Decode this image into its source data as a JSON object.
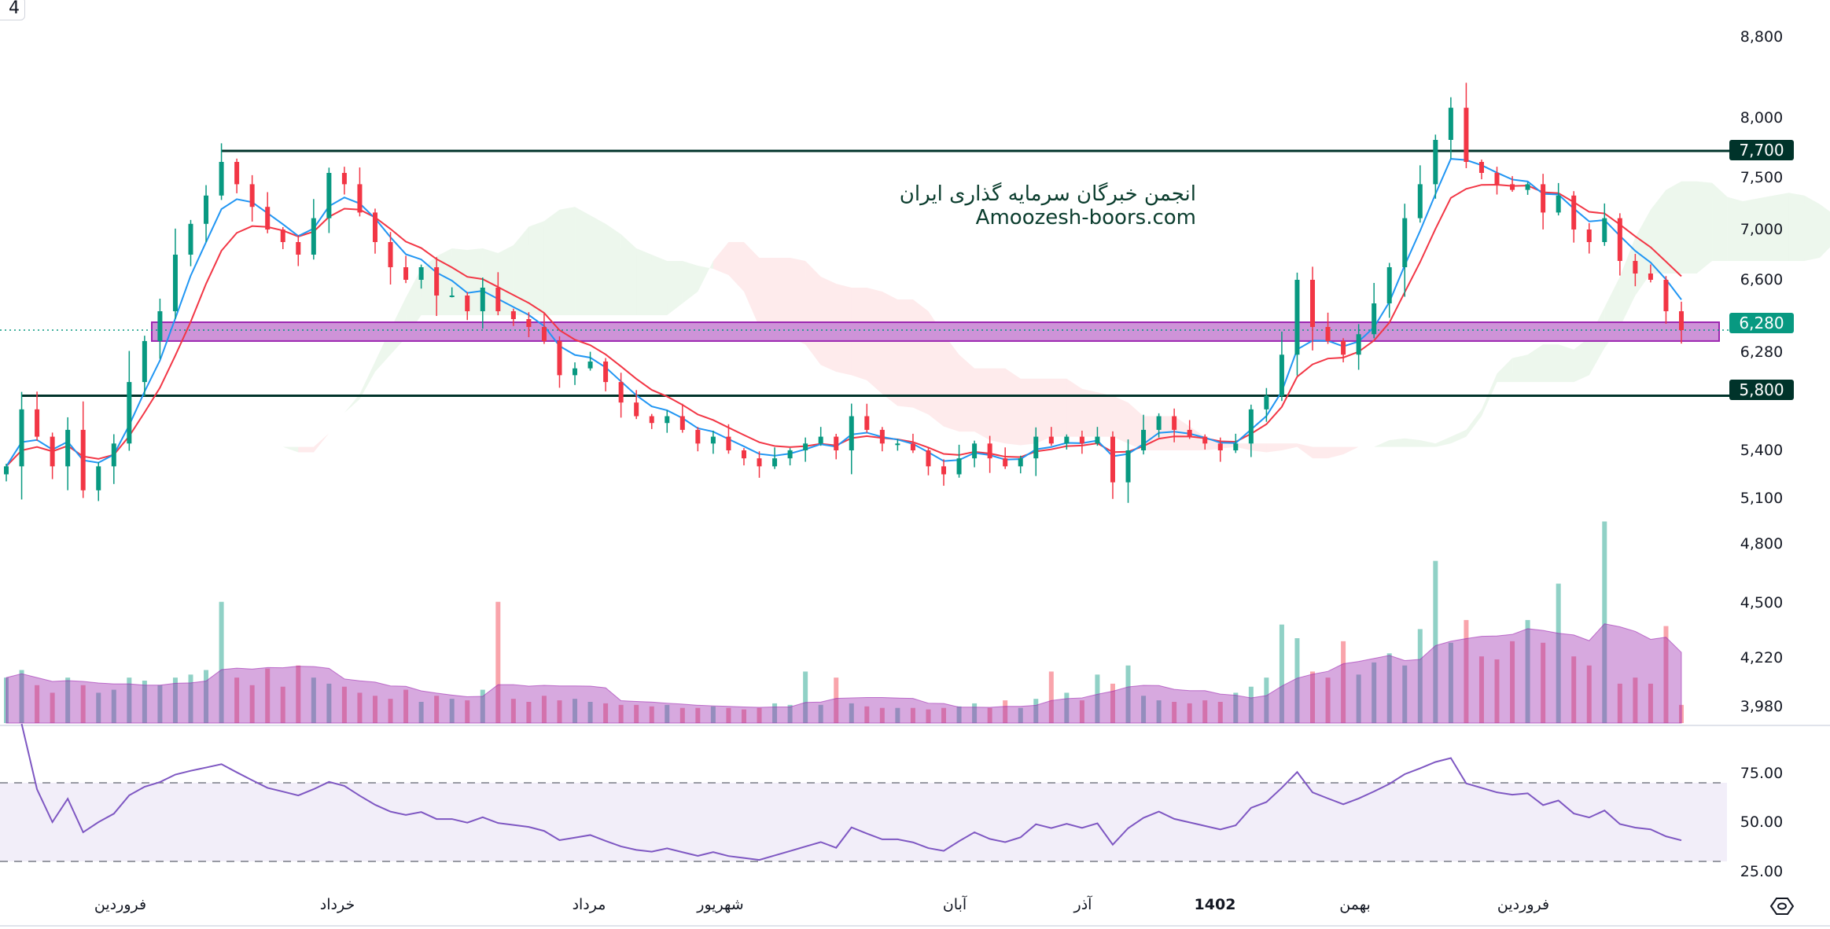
{
  "toolbar": {
    "interval_button": "4"
  },
  "watermark": {
    "line1": "انجمن خبرگان سرمایه گذاری ایران",
    "line2": "Amoozesh-boors.com"
  },
  "colors": {
    "up": "#089981",
    "down": "#f23645",
    "ema_fast": "#2196f3",
    "ema_slow": "#f23645",
    "level": "#00332a",
    "zone": "#ce93d8",
    "rsi": "#7e57c2",
    "volume_ma": "#9c27b0"
  },
  "levels": [
    {
      "value": 7700,
      "label": "7,700"
    },
    {
      "value": 5800,
      "label": "5,800"
    }
  ],
  "support_zone": {
    "from": 6200,
    "to": 6330
  },
  "last_price": {
    "value": 6280,
    "label": "6,280"
  },
  "price_axis": [
    "8,800",
    "8,000",
    "7,500",
    "7,000",
    "6,600",
    "6,280",
    "5,400",
    "5,100",
    "4,800",
    "4,500",
    "4,220",
    "3,980"
  ],
  "rsi_axis": [
    "75.00",
    "50.00",
    "25.00"
  ],
  "time_axis": [
    "فروردین",
    "خرداد",
    "مرداد",
    "شهریور",
    "آبان",
    "آذر",
    "1402",
    "بهمن",
    "فروردین"
  ],
  "settings_icon": "hexagon-settings-icon",
  "chart_data": {
    "type": "candlestick",
    "indicators": [
      "EMA fast",
      "EMA slow",
      "Ichimoku cloud",
      "Volume with MA",
      "RSI (bands 70/30)"
    ],
    "grid": false,
    "closes": [
      5300,
      5700,
      5500,
      5300,
      5550,
      5150,
      5300,
      5450,
      5900,
      6200,
      6400,
      6800,
      7050,
      7300,
      7600,
      7400,
      7200,
      7000,
      6900,
      6800,
      7100,
      7500,
      7400,
      7150,
      6900,
      6700,
      6600,
      6700,
      6500,
      6500,
      6400,
      6550,
      6400,
      6350,
      6300,
      6200,
      5950,
      6000,
      6050,
      5900,
      5750,
      5650,
      5600,
      5650,
      5550,
      5450,
      5500,
      5400,
      5350,
      5300,
      5350,
      5400,
      5450,
      5500,
      5400,
      5650,
      5550,
      5450,
      5450,
      5400,
      5300,
      5250,
      5350,
      5450,
      5350,
      5300,
      5350,
      5500,
      5450,
      5500,
      5450,
      5500,
      5200,
      5400,
      5550,
      5650,
      5550,
      5500,
      5450,
      5400,
      5450,
      5700,
      5800,
      6100,
      6600,
      6300,
      6200,
      6100,
      6250,
      6450,
      6700,
      7100,
      7400,
      7800,
      8100,
      7600,
      7500,
      7400,
      7350,
      7400,
      7150,
      7300,
      7000,
      6900,
      7100,
      6750,
      6650,
      6600,
      6400,
      6280
    ],
    "volumes": [
      3,
      3.5,
      2.5,
      2,
      3,
      2.5,
      2,
      2.2,
      3,
      2.8,
      2.5,
      3,
      3.2,
      3.5,
      8,
      3,
      2.5,
      3.6,
      2.4,
      3.8,
      3,
      2.6,
      2.4,
      2,
      1.8,
      1.6,
      2.2,
      1.4,
      1.8,
      1.6,
      1.5,
      2.2,
      8,
      1.6,
      1.4,
      1.8,
      1.5,
      1.6,
      1.4,
      1.3,
      1.2,
      1.2,
      1.1,
      1.2,
      1,
      1,
      1.1,
      1,
      0.9,
      1,
      1.3,
      1.2,
      3.4,
      1.2,
      3,
      1.3,
      1.1,
      1,
      1,
      1,
      0.9,
      1,
      1.1,
      1.3,
      1,
      1.5,
      1,
      1.6,
      3.4,
      2,
      1.5,
      3.2,
      2.6,
      3.8,
      1.8,
      1.5,
      1.4,
      1.3,
      1.5,
      1.4,
      2,
      2.4,
      3,
      6.5,
      5.6,
      3.4,
      3,
      5.4,
      3.2,
      4,
      4.6,
      3.8,
      6.2,
      10.7,
      5.3,
      6.8,
      4.4,
      4.2,
      5.4,
      6.8,
      5.3,
      9.2,
      4.4,
      3.8,
      13.3,
      2.6,
      3,
      2.6,
      6.4,
      1.2
    ],
    "volume_max": 14
  }
}
